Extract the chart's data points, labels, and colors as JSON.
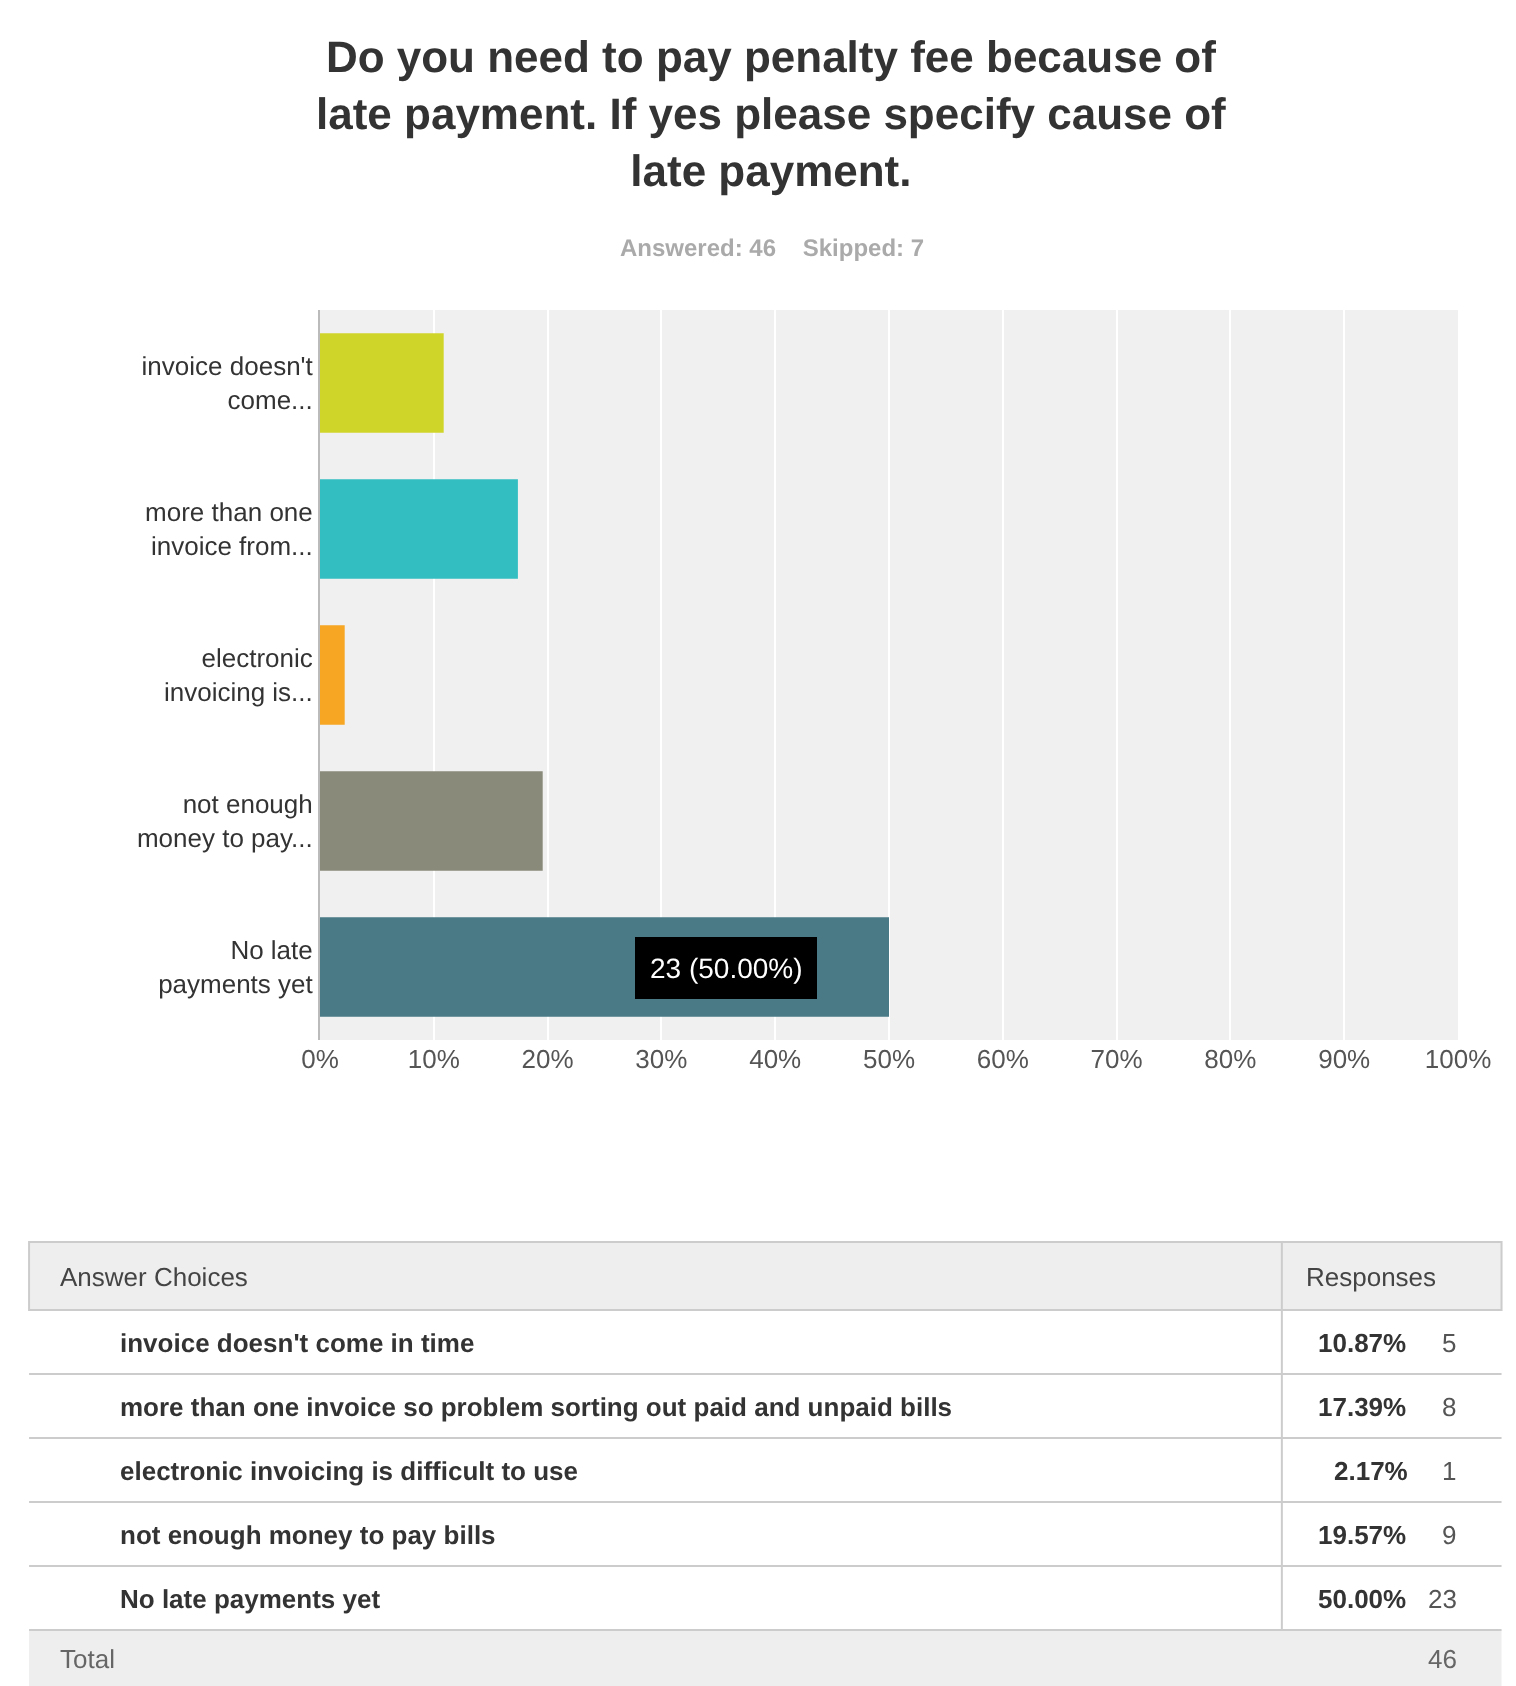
{
  "chart_data": {
    "type": "bar",
    "orientation": "horizontal",
    "title": "Do you need to pay penalty fee because of late payment. If yes please specify cause of late payment.",
    "subtitle": "Answered: 46    Skipped: 7",
    "categories": [
      "invoice doesn't come...",
      "more than one invoice from...",
      "electronic invoicing is...",
      "not enough money to pay...",
      "No late payments yet"
    ],
    "values": [
      10.87,
      17.39,
      2.17,
      19.57,
      50.0
    ],
    "colors": [
      "#d0d52a",
      "#33bec1",
      "#f6a623",
      "#8a8a7a",
      "#4a7a86"
    ],
    "value_labels": [
      null,
      null,
      null,
      null,
      "23 (50.00%)"
    ],
    "xlim": [
      0,
      100
    ],
    "xticks": [
      {
        "value": 0,
        "label": "0%"
      },
      {
        "value": 10,
        "label": "10%"
      },
      {
        "value": 20,
        "label": "20%"
      },
      {
        "value": 30,
        "label": "30%"
      },
      {
        "value": 40,
        "label": "40%"
      },
      {
        "value": 50,
        "label": "50%"
      },
      {
        "value": 60,
        "label": "60%"
      },
      {
        "value": 70,
        "label": "70%"
      },
      {
        "value": 80,
        "label": "80%"
      },
      {
        "value": 90,
        "label": "90%"
      },
      {
        "value": 100,
        "label": "100%"
      }
    ],
    "grid": "x",
    "legend": false,
    "annotations": [
      "Answer Choices",
      "Responses",
      "invoice doesn't come in time",
      "10.87%",
      "5",
      "more than one invoice so problem sorting out paid and unpaid bills",
      "17.39%",
      "8",
      "electronic invoicing is difficult to use",
      "2.17%",
      "1",
      "not enough money to pay bills",
      "19.57%",
      "9",
      "No late payments yet",
      "50.00%",
      "23",
      "Total",
      "46"
    ]
  }
}
